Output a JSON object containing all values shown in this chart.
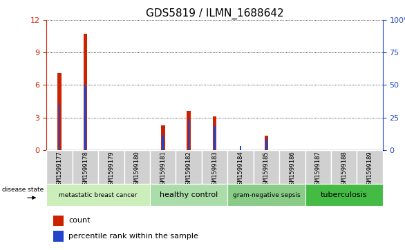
{
  "title": "GDS5819 / ILMN_1688642",
  "samples": [
    "GSM1599177",
    "GSM1599178",
    "GSM1599179",
    "GSM1599180",
    "GSM1599181",
    "GSM1599182",
    "GSM1599183",
    "GSM1599184",
    "GSM1599185",
    "GSM1599186",
    "GSM1599187",
    "GSM1599188",
    "GSM1599189"
  ],
  "count_values": [
    7.1,
    10.7,
    0.0,
    0.0,
    2.3,
    3.6,
    3.1,
    0.0,
    1.3,
    0.0,
    0.0,
    0.0,
    0.0
  ],
  "percentile_values": [
    36.0,
    49.5,
    0.0,
    0.0,
    11.5,
    23.5,
    18.5,
    3.0,
    8.5,
    0.0,
    0.0,
    0.0,
    0.0
  ],
  "ylim_left": [
    0,
    12
  ],
  "ylim_right": [
    0,
    100
  ],
  "yticks_left": [
    0,
    3,
    6,
    9,
    12
  ],
  "yticks_right": [
    0,
    25,
    50,
    75,
    100
  ],
  "ytick_labels_right": [
    "0",
    "25",
    "50",
    "75",
    "100%"
  ],
  "groups": [
    {
      "label": "metastatic breast cancer",
      "indices": [
        0,
        1,
        2,
        3
      ],
      "color": "#cceebb"
    },
    {
      "label": "healthy control",
      "indices": [
        4,
        5,
        6
      ],
      "color": "#aaddaa"
    },
    {
      "label": "gram-negative sepsis",
      "indices": [
        7,
        8,
        9
      ],
      "color": "#88cc88"
    },
    {
      "label": "tuberculosis",
      "indices": [
        10,
        11,
        12
      ],
      "color": "#44bb44"
    }
  ],
  "bar_color_red": "#cc2200",
  "bar_color_blue": "#2244cc",
  "red_bar_width": 0.15,
  "blue_bar_width": 0.07,
  "grid_color": "black",
  "bg_plot": "#ffffff",
  "bg_tick_area": "#d0d0d0",
  "legend_count_label": "count",
  "legend_percentile_label": "percentile rank within the sample",
  "disease_state_label": "disease state",
  "title_fontsize": 11,
  "tick_fontsize": 6.5,
  "group_label_fontsize": 8
}
